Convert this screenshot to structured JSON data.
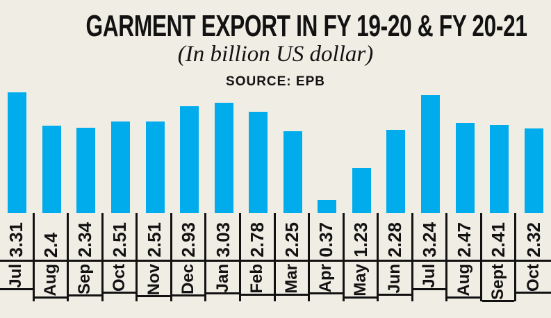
{
  "header": {
    "title": "GARMENT EXPORT IN FY 19-20 & FY 20-21",
    "subtitle": "(In billion US dollar)",
    "source": "SOURCE: EPB"
  },
  "chart_data": {
    "type": "bar",
    "title": "GARMENT EXPORT IN FY 19-20 & FY 20-21",
    "subtitle": "(In billion US dollar)",
    "source": "SOURCE: EPB",
    "unit": "billion US dollar",
    "categories": [
      "Jul",
      "Aug",
      "Sep",
      "Oct",
      "Nov",
      "Dec",
      "Jan",
      "Feb",
      "Mar",
      "Apr",
      "May",
      "Jun",
      "Jul",
      "Aug",
      "Sept",
      "Oct"
    ],
    "values": [
      3.31,
      2.4,
      2.34,
      2.51,
      2.51,
      2.93,
      3.03,
      2.78,
      2.25,
      0.37,
      1.23,
      2.28,
      3.24,
      2.47,
      2.41,
      2.32
    ],
    "value_labels": [
      "3.31",
      "2.4",
      "2.34",
      "2.51",
      "2.51",
      "2.93",
      "3.03",
      "2.78",
      "2.25",
      "0.37",
      "1.23",
      "2.28",
      "3.24",
      "2.47",
      "2.41",
      "2.32"
    ],
    "xlabel": "",
    "ylabel": "",
    "ylim": [
      0,
      3.5
    ],
    "grid": false,
    "legend": "none",
    "bar_color": "#00ACEC",
    "background_color": "#F0EDE4",
    "line_color": "#121212",
    "text_color": "#121212"
  }
}
